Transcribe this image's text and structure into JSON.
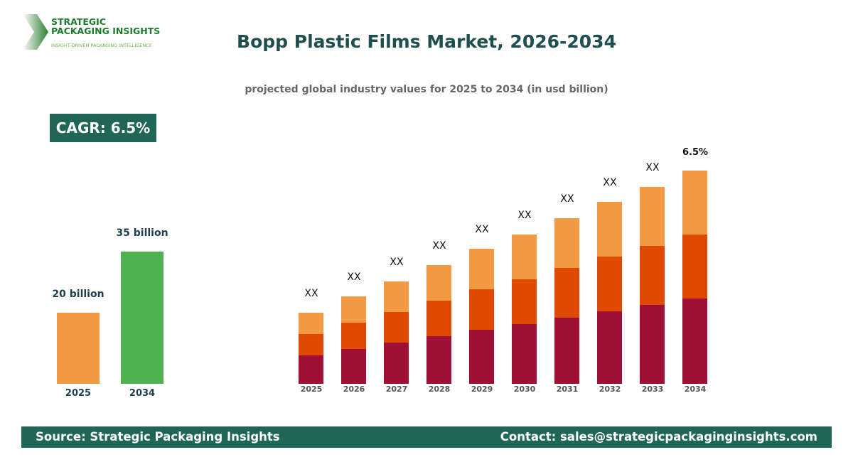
{
  "logo": {
    "line1": "STRATEGIC",
    "line2": "PACKAGING INSIGHTS",
    "tagline": "INSIGHT-DRIVEN PACKAGING INTELLIGENCE"
  },
  "title": "Bopp Plastic Films Market, 2026-2034",
  "subtitle": "projected global industry values for 2025 to 2034 (in usd billion)",
  "cagr": "CAGR: 6.5%",
  "chart_data": [
    {
      "type": "bar",
      "categories": [
        "2025",
        "2034"
      ],
      "values": [
        20,
        35
      ],
      "data_labels": [
        "20 billion",
        "35 billion"
      ],
      "colors": [
        "#f39a45",
        "#4db24f"
      ]
    },
    {
      "type": "bar",
      "stacked": true,
      "categories": [
        "2025",
        "2026",
        "2027",
        "2028",
        "2029",
        "2030",
        "2031",
        "2032",
        "2033",
        "2034"
      ],
      "series": [
        {
          "values": [
            4,
            4.9,
            5.8,
            6.7,
            7.6,
            8.4,
            9.3,
            10.2,
            11.1,
            12
          ],
          "color": "#a01034"
        },
        {
          "values": [
            3,
            3.7,
            4.3,
            5,
            5.7,
            6.3,
            7,
            7.7,
            8.3,
            9
          ],
          "color": "#e04a00"
        },
        {
          "values": [
            3,
            3.7,
            4.3,
            5,
            5.7,
            6.3,
            7,
            7.7,
            8.3,
            9
          ],
          "color": "#f39a45"
        }
      ],
      "data_labels": [
        "XX",
        "XX",
        "XX",
        "XX",
        "XX",
        "XX",
        "XX",
        "XX",
        "XX",
        "6.5%"
      ]
    }
  ],
  "footer": {
    "source": "Source: Strategic Packaging Insights",
    "contact": "Contact: sales@strategicpackaginginsights.com"
  }
}
